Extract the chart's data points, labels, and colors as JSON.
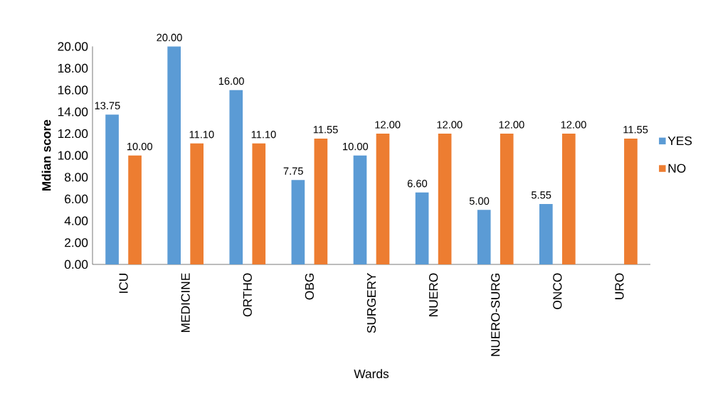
{
  "chart_data": {
    "type": "bar",
    "xlabel": "Wards",
    "ylabel": "Mdian score",
    "categories": [
      "ICU",
      "MEDICINE",
      "ORTHO",
      "OBG",
      "SURGERY",
      "NUERO",
      "NUERO-SURG",
      "ONCO",
      "URO"
    ],
    "series": [
      {
        "name": "YES",
        "color": "#5b9bd5",
        "values": [
          13.75,
          20,
          16,
          7.75,
          10,
          6.6,
          5,
          5.55,
          null
        ],
        "value_labels": [
          "13.75",
          "20.00",
          "16.00",
          "7.75",
          "10.00",
          "6.60",
          "5.00",
          "5.55",
          null
        ]
      },
      {
        "name": "NO",
        "color": "#ed7d31",
        "values": [
          10,
          11.1,
          11.1,
          11.55,
          12,
          12,
          12,
          12,
          11.55
        ],
        "value_labels": [
          "10.00",
          "11.10",
          "11.10",
          "11.55",
          "12.00",
          "12.00",
          "12.00",
          "12.00",
          "11.55"
        ]
      }
    ],
    "ylim": [
      0,
      20
    ],
    "yticks": [
      {
        "value": 0,
        "label": "0.00"
      },
      {
        "value": 2,
        "label": "2.00"
      },
      {
        "value": 4,
        "label": "4.00"
      },
      {
        "value": 6,
        "label": "6.00"
      },
      {
        "value": 8,
        "label": "8.00"
      },
      {
        "value": 10,
        "label": "10.00"
      },
      {
        "value": 12,
        "label": "12.00"
      },
      {
        "value": 14,
        "label": "14.00"
      },
      {
        "value": 16,
        "label": "16.00"
      },
      {
        "value": 18,
        "label": "18.00"
      },
      {
        "value": 20,
        "label": "20.00"
      }
    ],
    "legend": "right",
    "grid": false
  }
}
